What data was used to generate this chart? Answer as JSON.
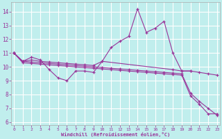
{
  "xlabel": "Windchill (Refroidissement éolien,°C)",
  "bg_color": "#c0eeed",
  "grid_color": "#ffffff",
  "line_color": "#993399",
  "xlim": [
    -0.3,
    23.3
  ],
  "ylim": [
    5.8,
    14.7
  ],
  "yticks": [
    6,
    7,
    8,
    9,
    10,
    11,
    12,
    13,
    14
  ],
  "xticks": [
    0,
    1,
    2,
    3,
    4,
    5,
    6,
    7,
    8,
    9,
    10,
    11,
    12,
    13,
    14,
    15,
    16,
    17,
    18,
    19,
    20,
    21,
    22,
    23
  ],
  "series": [
    {
      "x": [
        0,
        1,
        2,
        3,
        4,
        5,
        6,
        7,
        8,
        9,
        10,
        11,
        12,
        13,
        14,
        15,
        16,
        17,
        18,
        19,
        20
      ],
      "y": [
        11.0,
        10.4,
        10.7,
        10.5,
        9.8,
        9.2,
        9.0,
        9.7,
        9.7,
        9.6,
        10.4,
        11.4,
        11.85,
        12.2,
        14.2,
        12.5,
        12.8,
        13.3,
        11.0,
        9.7,
        9.7
      ]
    },
    {
      "x": [
        0,
        1,
        2,
        3,
        4,
        5,
        6,
        7,
        8,
        9,
        10,
        18,
        19,
        20,
        21,
        22,
        23
      ],
      "y": [
        11.0,
        10.4,
        10.5,
        10.4,
        10.35,
        10.3,
        10.25,
        10.2,
        10.15,
        10.1,
        10.4,
        9.8,
        9.7,
        9.7,
        9.6,
        9.5,
        9.4
      ]
    },
    {
      "x": [
        0,
        1,
        2,
        3,
        4,
        5,
        6,
        7,
        8,
        9,
        10,
        11,
        12,
        13,
        14,
        15,
        16,
        17,
        18,
        19,
        20,
        21,
        22,
        23
      ],
      "y": [
        11.0,
        10.4,
        10.35,
        10.3,
        10.25,
        10.2,
        10.15,
        10.1,
        10.05,
        10.0,
        9.95,
        9.9,
        9.85,
        9.8,
        9.75,
        9.7,
        9.65,
        9.6,
        9.55,
        9.5,
        8.1,
        7.5,
        7.0,
        6.5
      ]
    },
    {
      "x": [
        0,
        1,
        2,
        3,
        4,
        5,
        6,
        7,
        8,
        9,
        10,
        11,
        12,
        13,
        14,
        15,
        16,
        17,
        18,
        19,
        20,
        21,
        22,
        23
      ],
      "y": [
        11.0,
        10.3,
        10.25,
        10.2,
        10.15,
        10.1,
        10.05,
        10.0,
        9.95,
        9.9,
        9.85,
        9.8,
        9.75,
        9.7,
        9.65,
        9.6,
        9.55,
        9.5,
        9.45,
        9.4,
        7.9,
        7.3,
        6.6,
        6.6
      ]
    }
  ]
}
